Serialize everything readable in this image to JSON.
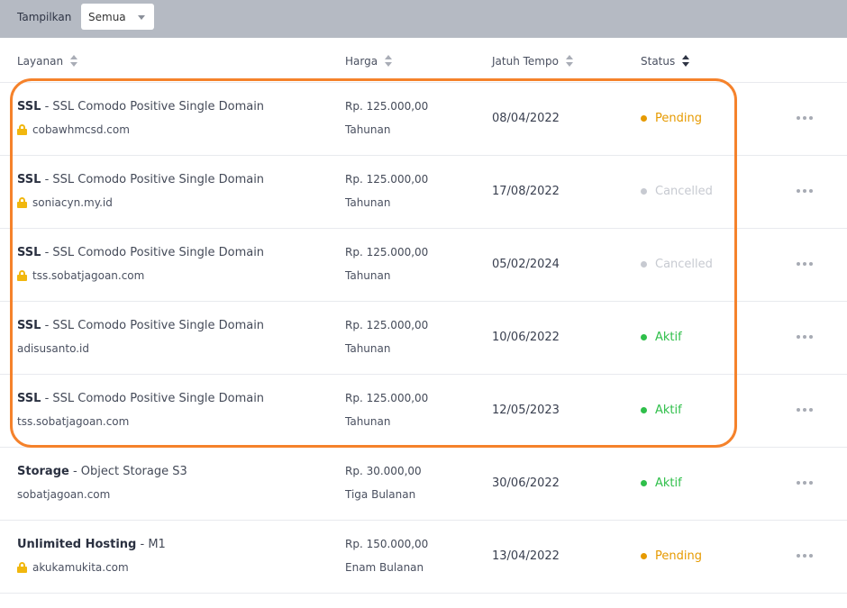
{
  "filter": {
    "label": "Tampilkan",
    "value": "Semua"
  },
  "columns": {
    "service": "Layanan",
    "price": "Harga",
    "due": "Jatuh Tempo",
    "status": "Status"
  },
  "colors": {
    "pending": "#e69a00",
    "cancelled": "#c7cad1",
    "active": "#2fbf4a",
    "highlight": "#f5822b",
    "lock": "#f1b70e"
  },
  "rows": [
    {
      "product": "SSL",
      "plan": " - SSL Comodo Positive Single Domain",
      "domain": "cobawhmcsd.com",
      "secure": true,
      "price": "Rp. 125.000,00",
      "cycle": "Tahunan",
      "due": "08/04/2022",
      "status": "Pending",
      "status_key": "pending"
    },
    {
      "product": "SSL",
      "plan": " - SSL Comodo Positive Single Domain",
      "domain": "soniacyn.my.id",
      "secure": true,
      "price": "Rp. 125.000,00",
      "cycle": "Tahunan",
      "due": "17/08/2022",
      "status": "Cancelled",
      "status_key": "cancelled"
    },
    {
      "product": "SSL",
      "plan": " - SSL Comodo Positive Single Domain",
      "domain": "tss.sobatjagoan.com",
      "secure": true,
      "price": "Rp. 125.000,00",
      "cycle": "Tahunan",
      "due": "05/02/2024",
      "status": "Cancelled",
      "status_key": "cancelled"
    },
    {
      "product": "SSL",
      "plan": " - SSL Comodo Positive Single Domain",
      "domain": "adisusanto.id",
      "secure": false,
      "price": "Rp. 125.000,00",
      "cycle": "Tahunan",
      "due": "10/06/2022",
      "status": "Aktif",
      "status_key": "active"
    },
    {
      "product": "SSL",
      "plan": " - SSL Comodo Positive Single Domain",
      "domain": "tss.sobatjagoan.com",
      "secure": false,
      "price": "Rp. 125.000,00",
      "cycle": "Tahunan",
      "due": "12/05/2023",
      "status": "Aktif",
      "status_key": "active"
    },
    {
      "product": "Storage",
      "plan": " - Object Storage S3",
      "domain": "sobatjagoan.com",
      "secure": false,
      "price": "Rp. 30.000,00",
      "cycle": "Tiga Bulanan",
      "due": "30/06/2022",
      "status": "Aktif",
      "status_key": "active"
    },
    {
      "product": "Unlimited Hosting",
      "plan": " - M1",
      "domain": "akukamukita.com",
      "secure": true,
      "price": "Rp. 150.000,00",
      "cycle": "Enam Bulanan",
      "due": "13/04/2022",
      "status": "Pending",
      "status_key": "pending"
    }
  ]
}
